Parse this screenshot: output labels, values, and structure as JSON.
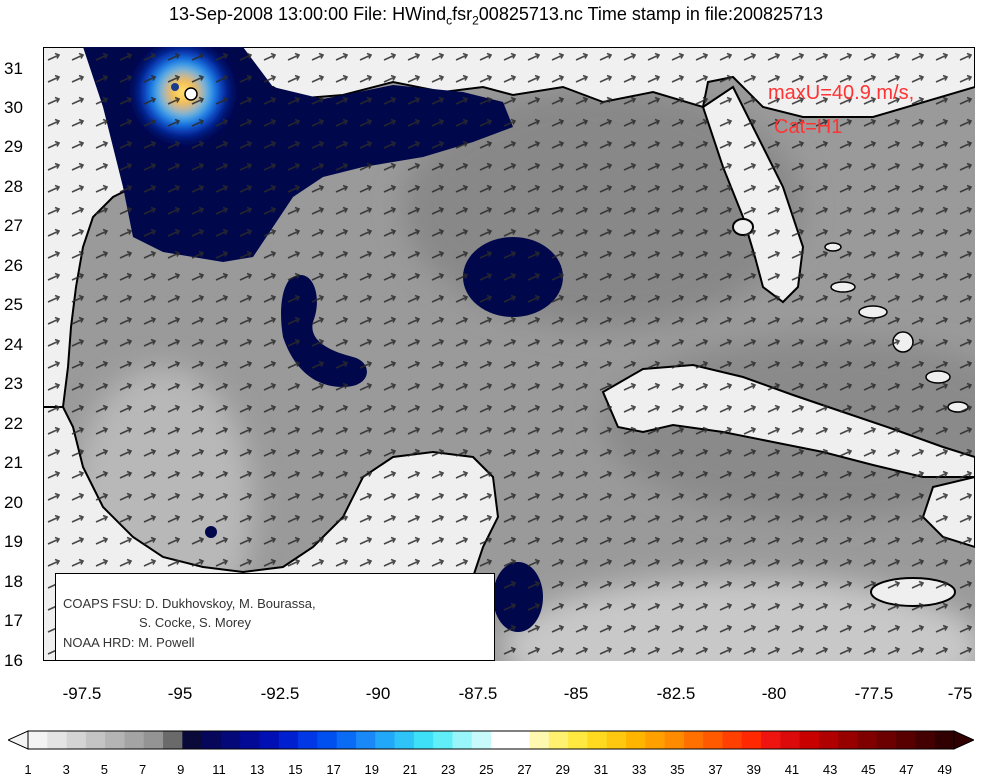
{
  "header": {
    "title_pre": "13-Sep-2008 13:00:00 File: HWind",
    "title_sub1": "c",
    "title_mid": "fsr",
    "title_sub2": "2",
    "title_post": "00825713.nc Time stamp in file:200825713"
  },
  "map": {
    "lon_ticks": [
      "-97.5",
      "-95",
      "-92.5",
      "-90",
      "-87.5",
      "-85",
      "-82.5",
      "-80",
      "-77.5",
      "-75"
    ],
    "lat_ticks": [
      "31",
      "30",
      "29",
      "28",
      "27",
      "26",
      "25",
      "24",
      "23",
      "22",
      "21",
      "20",
      "19",
      "18",
      "17",
      "16"
    ],
    "lon_range": [
      -98.5,
      -75
    ],
    "lat_range": [
      16,
      31.5
    ],
    "storm_center": {
      "lon": -94.6,
      "lat": 30.3
    },
    "colors": {
      "land": "#f2f2f2",
      "sea_mid": "#9a9a9a",
      "low_wind": "#00074a",
      "coast": "#000000"
    }
  },
  "annotation": {
    "max_wind": "maxU=40.9 m/s,",
    "category": "Cat=H1"
  },
  "credits": {
    "line1": "COAPS FSU: D. Dukhovskoy, M. Bourassa,",
    "line2": "S. Cocke, S. Morey",
    "line3": "NOAA HRD:  M. Powell"
  },
  "colorbar": {
    "labels": [
      "1",
      "3",
      "5",
      "7",
      "9",
      "11",
      "13",
      "15",
      "17",
      "19",
      "21",
      "23",
      "25",
      "27",
      "29",
      "31",
      "33",
      "35",
      "37",
      "39",
      "41",
      "43",
      "45",
      "47",
      "49"
    ],
    "colors": [
      "#f4f4f4",
      "#e4e4e4",
      "#d4d4d4",
      "#c4c4c4",
      "#b4b4b4",
      "#a4a4a4",
      "#949494",
      "#6a6a6a",
      "#0a0a3a",
      "#06065a",
      "#040878",
      "#020a96",
      "#0010b4",
      "#0020d0",
      "#0038e6",
      "#0050f0",
      "#0a6cf4",
      "#1a88f6",
      "#22a8f8",
      "#2ec4f8",
      "#3ee0f8",
      "#60eef8",
      "#98f6fa",
      "#c8fafc",
      "#ffffff",
      "#ffffff",
      "#fff8b0",
      "#fff070",
      "#ffe840",
      "#ffd820",
      "#ffc810",
      "#ffb400",
      "#ffa000",
      "#ff8c00",
      "#ff7000",
      "#ff5a00",
      "#ff4000",
      "#ff2800",
      "#f01410",
      "#dc0a0a",
      "#c80000",
      "#b00000",
      "#980000",
      "#800000",
      "#6c0000",
      "#580000",
      "#440000",
      "#300000"
    ]
  }
}
